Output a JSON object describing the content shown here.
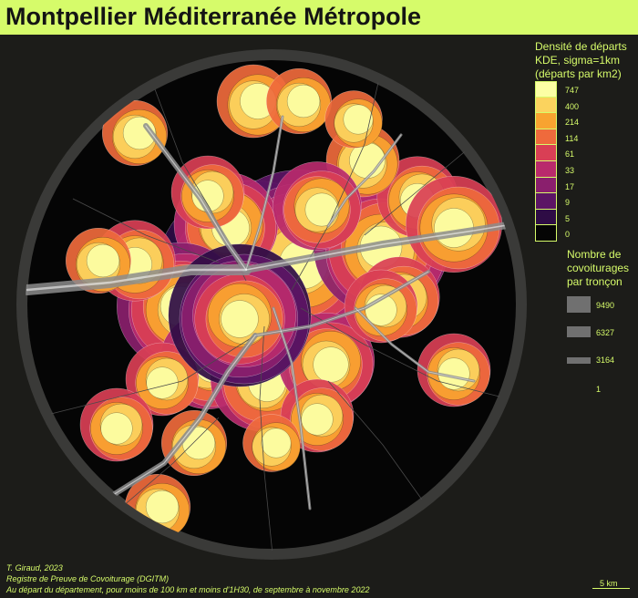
{
  "title": "Montpellier Méditerranée Métropole",
  "legend_density": {
    "title_lines": [
      "Densité de départs",
      "KDE, sigma=1km",
      "(départs par km2)"
    ],
    "breaks": [
      "747",
      "400",
      "214",
      "114",
      "61",
      "33",
      "17",
      "9",
      "5",
      "0"
    ],
    "colors": [
      "#fcffa4",
      "#fbd35e",
      "#f8a330",
      "#ef6a3c",
      "#d93f55",
      "#b92a6c",
      "#8a1f6d",
      "#5c1565",
      "#2e0c45",
      "#050505"
    ]
  },
  "legend_flows": {
    "title_lines": [
      "Nombre de",
      "covoiturages",
      "par tronçon"
    ],
    "values": [
      "9490",
      "6327",
      "3164",
      "1"
    ]
  },
  "credits": [
    "T. Giraud, 2023",
    "Registre de Preuve de Covoiturage (DGITM)",
    "Au départ du département, pour moins de 100 km et moins d'1H30, de septembre à novembre 2022"
  ],
  "scale_bar": {
    "label": "5 km"
  }
}
